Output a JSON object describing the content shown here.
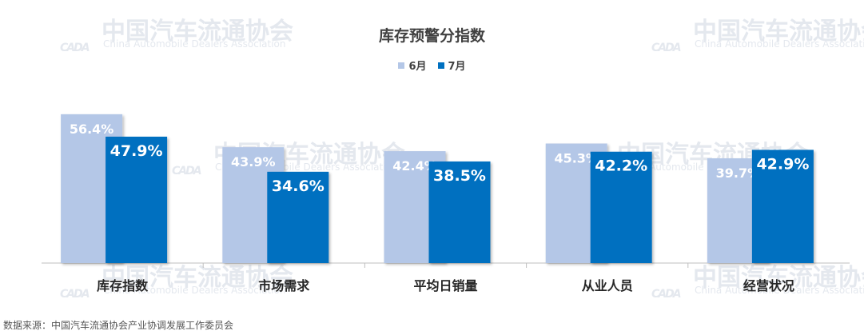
{
  "watermark": {
    "logo": "CADA",
    "cn": "中国汽车流通协会",
    "en": "China Automobile Dealers Association"
  },
  "source": "数据来源：中国汽车流通协会产业协调发展工作委员会",
  "chart_data": {
    "type": "bar",
    "title": "库存预警分指数",
    "categories": [
      "库存指数",
      "市场需求",
      "平均日销量",
      "从业人员",
      "经营状况"
    ],
    "series": [
      {
        "name": "6月",
        "values": [
          56.4,
          43.9,
          42.4,
          45.3,
          39.7
        ],
        "labels": [
          "56.4%",
          "43.9%",
          "42.4%",
          "45.3%",
          "39.7%"
        ],
        "color": "#b4c7e7"
      },
      {
        "name": "7月",
        "values": [
          47.9,
          34.6,
          38.5,
          42.2,
          42.9
        ],
        "labels": [
          "47.9%",
          "34.6%",
          "38.5%",
          "42.2%",
          "42.9%"
        ],
        "color": "#0070c0"
      }
    ],
    "ylim": [
      0,
      60
    ],
    "grid": false,
    "legend_position": "top"
  }
}
